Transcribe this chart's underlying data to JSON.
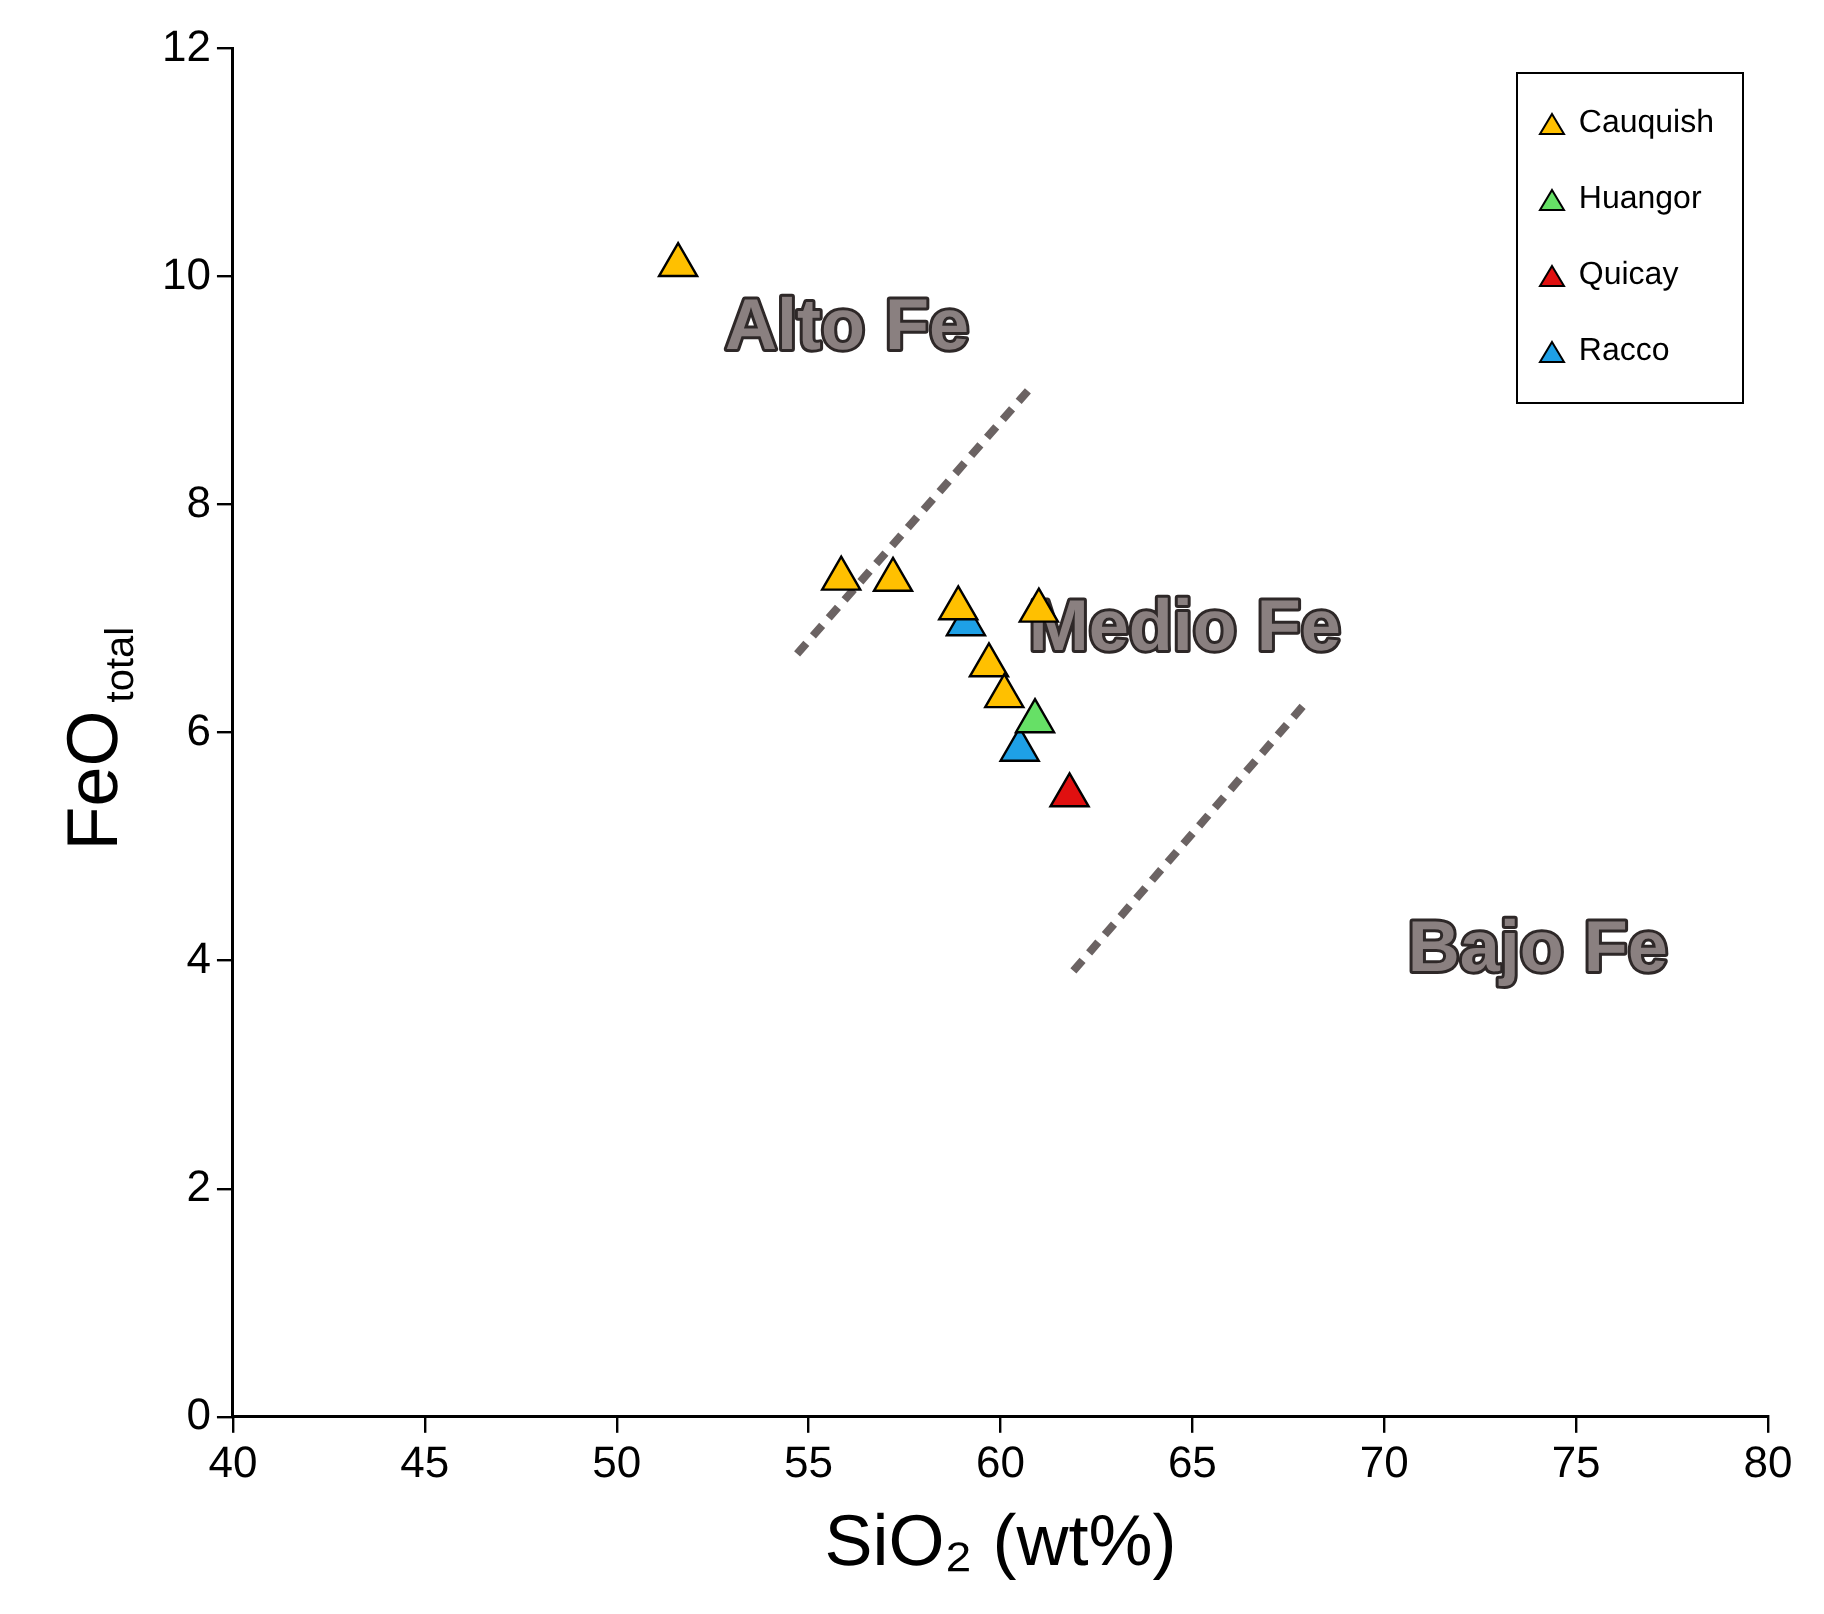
{
  "chart_data": {
    "type": "scatter",
    "xlabel": "SiO₂ (wt%)",
    "ylabel": "FeO$_{total}$",
    "xlim": [
      40,
      80
    ],
    "xticks": [
      40,
      45,
      50,
      55,
      60,
      65,
      70,
      75,
      80
    ],
    "ylim": [
      0,
      12
    ],
    "yticks": [
      0,
      2,
      4,
      6,
      8,
      10,
      12
    ],
    "grid": false,
    "legend": "top right",
    "marker": "triangle",
    "series": [
      {
        "name": "Cauquish",
        "color": "#ffc000",
        "x": [
          51.6,
          55.85,
          57.2,
          58.9,
          61.0,
          59.7,
          60.1
        ],
        "values": [
          10.1,
          7.35,
          7.34,
          7.09,
          7.07,
          6.59,
          6.32
        ]
      },
      {
        "name": "Huangor",
        "color": "#66e066",
        "x": [
          60.9
        ],
        "values": [
          6.1
        ]
      },
      {
        "name": "Quicay",
        "color": "#e01010",
        "x": [
          61.8
        ],
        "values": [
          5.45
        ]
      },
      {
        "name": "Racco",
        "color": "#1ea0e6",
        "x": [
          59.1,
          60.5
        ],
        "values": [
          6.95,
          5.85
        ]
      },
      {
        "type": "line",
        "color": "#6b6363",
        "line_style": "dashed",
        "marker": "none",
        "x": [
          54.7,
          60.8
        ],
        "values": [
          6.69,
          9.03
        ]
      },
      {
        "type": "line",
        "color": "#6b6363",
        "line_style": "dashed",
        "marker": "none",
        "x": [
          61.9,
          67.9
        ],
        "values": [
          3.91,
          6.24
        ]
      }
    ],
    "annotations": [
      "Alto Fe",
      "Medio Fe",
      "Bajo Fe"
    ]
  }
}
